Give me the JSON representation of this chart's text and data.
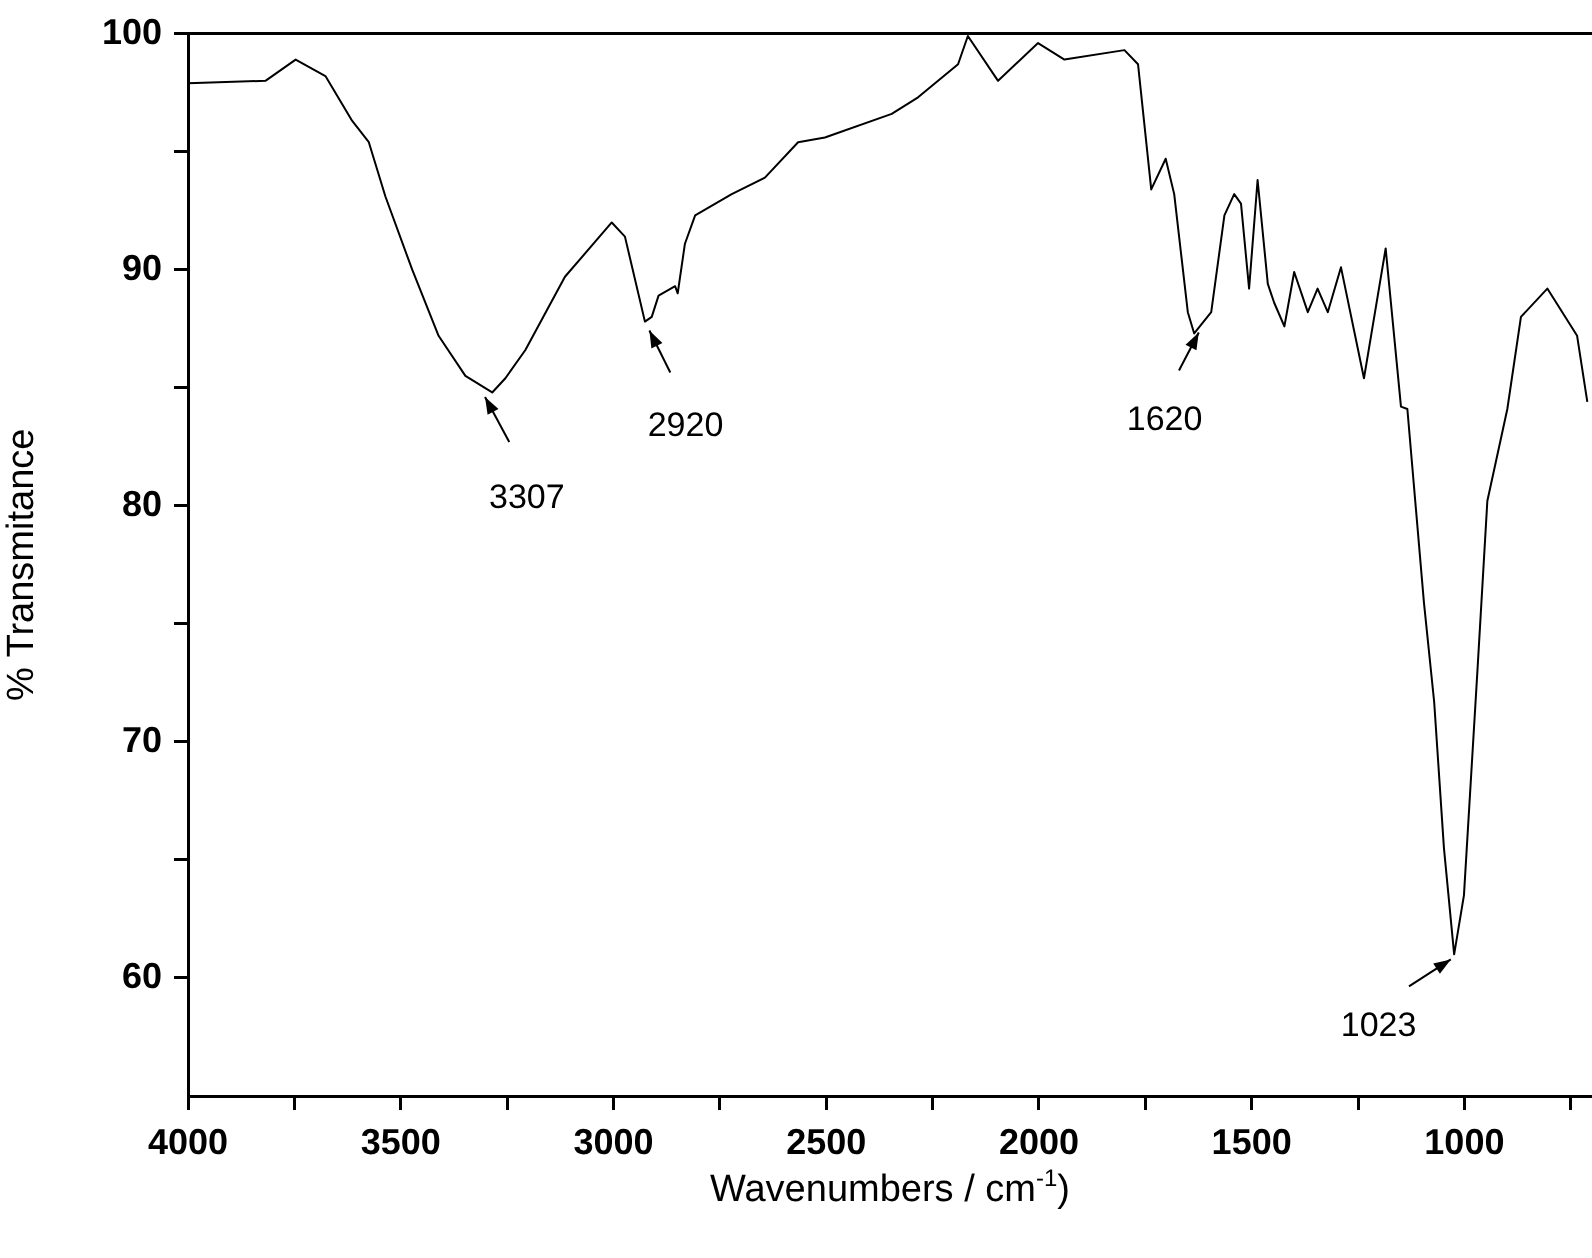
{
  "chart_data": {
    "type": "line",
    "xlabel": "Wavenumbers / cm$^{-1}$)",
    "ylabel": "% Transmitance",
    "xlim": [
      4000,
      700
    ],
    "ylim": [
      55,
      100
    ],
    "xticks": [
      4000,
      {
        "value": 3750,
        "label": null
      },
      3500,
      {
        "value": 3250,
        "label": null
      },
      3000,
      {
        "value": 2750,
        "label": null
      },
      2500,
      {
        "value": 2250,
        "label": null
      },
      2000,
      {
        "value": 1750,
        "label": null
      },
      1500,
      {
        "value": 1250,
        "label": null
      },
      1000,
      {
        "value": 750,
        "label": null
      }
    ],
    "yticks": [
      60,
      {
        "value": 65,
        "label": null
      },
      70,
      {
        "value": 75,
        "label": null
      },
      80,
      {
        "value": 85,
        "label": null
      },
      90,
      {
        "value": 95,
        "label": null
      },
      100
    ],
    "grid": false,
    "series": [
      {
        "color": "#000000",
        "x": [
          4000,
          3818,
          3747,
          3677,
          3614,
          3575,
          3536,
          3473,
          3411,
          3348,
          3285,
          3254,
          3207,
          3114,
          3004,
          2973,
          2926,
          2910,
          2894,
          2855,
          2849,
          2832,
          2808,
          2722,
          2644,
          2566,
          2503,
          2346,
          2284,
          2190,
          2167,
          2096,
          2002,
          1940,
          1799,
          1767,
          1736,
          1702,
          1682,
          1650,
          1635,
          1595,
          1564,
          1541,
          1525,
          1506,
          1486,
          1462,
          1447,
          1423,
          1400,
          1368,
          1345,
          1321,
          1290,
          1236,
          1185,
          1149,
          1134,
          1095,
          1071,
          1048,
          1024,
          1001,
          969,
          946,
          899,
          867,
          805,
          735,
          711
        ],
        "values": [
          97.9,
          98.0,
          98.9,
          98.2,
          96.3,
          95.4,
          93.1,
          90.0,
          87.2,
          85.5,
          84.8,
          85.4,
          86.6,
          89.7,
          92.0,
          91.4,
          87.8,
          88.0,
          88.9,
          89.3,
          89.0,
          91.1,
          92.3,
          93.2,
          93.9,
          95.4,
          95.6,
          96.6,
          97.3,
          98.7,
          99.9,
          98.0,
          99.6,
          98.9,
          99.3,
          98.7,
          93.4,
          94.7,
          93.2,
          88.2,
          87.3,
          88.2,
          92.3,
          93.2,
          92.8,
          89.2,
          93.8,
          89.4,
          88.6,
          87.6,
          89.9,
          88.2,
          89.2,
          88.2,
          90.1,
          85.4,
          90.9,
          84.2,
          84.1,
          75.9,
          71.7,
          65.5,
          61.0,
          63.5,
          73.1,
          80.2,
          84.1,
          88.0,
          89.2,
          87.2,
          84.4
        ]
      }
    ],
    "annotations": [
      {
        "text": "3307",
        "x": 3307,
        "y": 84.8
      },
      {
        "text": "2920",
        "x": 2920,
        "y": 87.6
      },
      {
        "text": "1620",
        "x": 1620,
        "y": 87.5
      },
      {
        "text": "1023",
        "x": 1023,
        "y": 60.9
      }
    ]
  }
}
